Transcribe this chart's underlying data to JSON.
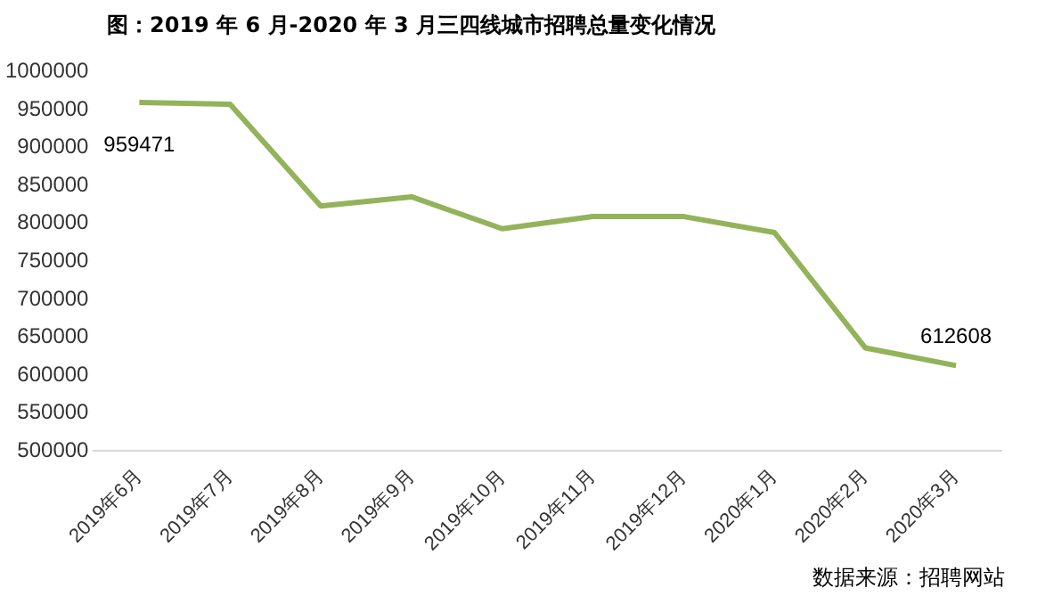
{
  "chart_data": {
    "type": "line",
    "title": "图：2019 年 6 月-2020 年 3 月三四线城市招聘总量变化情况",
    "categories": [
      "2019年6月",
      "2019年7月",
      "2019年8月",
      "2019年9月",
      "2019年10月",
      "2019年11月",
      "2019年12月",
      "2020年1月",
      "2020年2月",
      "2020年3月"
    ],
    "series": [
      {
        "color": "#93b35a",
        "values": [
          959471,
          957000,
          823000,
          835000,
          793000,
          809000,
          809000,
          788000,
          636000,
          612608
        ],
        "value_labels": [
          "959471",
          null,
          null,
          null,
          null,
          null,
          null,
          null,
          null,
          "612608"
        ]
      }
    ],
    "ylim": [
      500000,
      1000000
    ],
    "yticks": [
      500000,
      550000,
      600000,
      650000,
      700000,
      750000,
      800000,
      850000,
      900000,
      950000,
      1000000
    ],
    "grid": false,
    "legend": false,
    "marker": "none",
    "line_style": "solid",
    "annotations": [
      "数据来源：招聘网站"
    ]
  }
}
